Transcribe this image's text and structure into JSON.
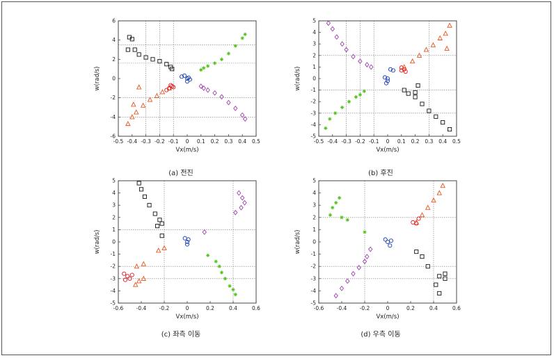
{
  "chart_data": [
    {
      "type": "scatter",
      "caption": "(a) 전진",
      "xlabel": "Vx(m/s)",
      "ylabel": "w(rad/s)",
      "xlim": [
        -0.5,
        0.5
      ],
      "ylim": [
        -6,
        6
      ],
      "xticks": [
        "-0.5",
        "-0.4",
        "-0.3",
        "-0.2",
        "-0.1",
        "0",
        "0.1",
        "0.2",
        "0.3",
        "0.4",
        "0.5"
      ],
      "yticks": [
        "-6",
        "-4",
        "-2",
        "0",
        "2",
        "4",
        "6"
      ],
      "guides_x": [
        -0.3,
        -0.2,
        -0.1
      ],
      "guides_y": [
        3.5,
        1.6,
        -2,
        -4
      ],
      "series": [
        {
          "color": "#111111",
          "marker": "square",
          "points": [
            [
              -0.43,
              3.0
            ],
            [
              -0.42,
              4.3
            ],
            [
              -0.4,
              4.1
            ],
            [
              -0.38,
              3.0
            ],
            [
              -0.35,
              2.5
            ],
            [
              -0.3,
              2.2
            ],
            [
              -0.25,
              2.0
            ],
            [
              -0.2,
              1.8
            ],
            [
              -0.15,
              1.5
            ],
            [
              -0.12,
              1.2
            ],
            [
              -0.11,
              1.0
            ]
          ]
        },
        {
          "color": "#e8531c",
          "marker": "triangle",
          "points": [
            [
              -0.43,
              -4.7
            ],
            [
              -0.4,
              -4.0
            ],
            [
              -0.37,
              -3.5
            ],
            [
              -0.32,
              -2.8
            ],
            [
              -0.27,
              -2.2
            ],
            [
              -0.22,
              -1.8
            ],
            [
              -0.18,
              -1.4
            ],
            [
              -0.35,
              -0.9
            ],
            [
              -0.39,
              -2.7
            ],
            [
              -0.13,
              -1.0
            ]
          ]
        },
        {
          "color": "#e0141c",
          "marker": "circle",
          "points": [
            [
              -0.15,
              -1.2
            ],
            [
              -0.13,
              -1.0
            ],
            [
              -0.11,
              -0.8
            ],
            [
              -0.1,
              -0.9
            ],
            [
              -0.12,
              -0.7
            ]
          ]
        },
        {
          "color": "#1a3fb0",
          "marker": "circle",
          "points": [
            [
              -0.04,
              0.2
            ],
            [
              -0.02,
              0.3
            ],
            [
              0.0,
              0.0
            ],
            [
              0.02,
              -0.1
            ],
            [
              0.0,
              -0.3
            ],
            [
              0.01,
              0.1
            ]
          ]
        },
        {
          "color": "#4cc214",
          "marker": "star",
          "points": [
            [
              0.1,
              0.9
            ],
            [
              0.12,
              1.1
            ],
            [
              0.15,
              1.3
            ],
            [
              0.2,
              1.6
            ],
            [
              0.25,
              2.0
            ],
            [
              0.3,
              2.6
            ],
            [
              0.35,
              3.4
            ],
            [
              0.4,
              4.2
            ],
            [
              0.42,
              4.6
            ]
          ]
        },
        {
          "color": "#a040b0",
          "marker": "diamond",
          "points": [
            [
              0.1,
              -0.8
            ],
            [
              0.12,
              -1.0
            ],
            [
              0.15,
              -1.2
            ],
            [
              0.2,
              -1.5
            ],
            [
              0.25,
              -1.9
            ],
            [
              0.3,
              -2.5
            ],
            [
              0.35,
              -3.1
            ],
            [
              0.4,
              -3.8
            ],
            [
              0.42,
              -4.2
            ]
          ]
        }
      ]
    },
    {
      "type": "scatter",
      "caption": "(b) 후진",
      "xlabel": "Vx(m/s)",
      "ylabel": "w(rad/s)",
      "xlim": [
        -0.5,
        0.5
      ],
      "ylim": [
        -5,
        5
      ],
      "xticks": [
        "-0.5",
        "-0.4",
        "-0.3",
        "-0.2",
        "-0.1",
        "0",
        "0.1",
        "0.2",
        "0.3",
        "0.4",
        "0.5"
      ],
      "yticks": [
        "-5",
        "-4",
        "-3",
        "-2",
        "-1",
        "0",
        "1",
        "2",
        "3",
        "4",
        "5"
      ],
      "guides_x": [
        -0.3,
        -0.2,
        -0.1,
        0.3
      ],
      "guides_y": [
        2,
        -1,
        -3
      ],
      "series": [
        {
          "color": "#a040b0",
          "marker": "diamond",
          "points": [
            [
              -0.43,
              4.8
            ],
            [
              -0.4,
              4.3
            ],
            [
              -0.37,
              3.6
            ],
            [
              -0.33,
              3.0
            ],
            [
              -0.3,
              2.5
            ],
            [
              -0.25,
              1.9
            ],
            [
              -0.2,
              1.5
            ],
            [
              -0.15,
              1.2
            ],
            [
              -0.12,
              1.0
            ]
          ]
        },
        {
          "color": "#4cc214",
          "marker": "star",
          "points": [
            [
              -0.45,
              -4.3
            ],
            [
              -0.42,
              -3.5
            ],
            [
              -0.38,
              -3.0
            ],
            [
              -0.33,
              -2.5
            ],
            [
              -0.28,
              -2.0
            ],
            [
              -0.23,
              -1.6
            ],
            [
              -0.2,
              -1.4
            ],
            [
              -0.17,
              -1.1
            ]
          ]
        },
        {
          "color": "#1a3fb0",
          "marker": "circle",
          "points": [
            [
              -0.02,
              0.1
            ],
            [
              0.0,
              0.0
            ],
            [
              0.0,
              -0.2
            ],
            [
              0.02,
              0.8
            ],
            [
              0.04,
              0.7
            ],
            [
              -0.01,
              -0.4
            ]
          ]
        },
        {
          "color": "#e0141c",
          "marker": "circle",
          "points": [
            [
              0.1,
              0.7
            ],
            [
              0.12,
              0.8
            ],
            [
              0.1,
              0.95
            ],
            [
              0.13,
              0.6
            ]
          ]
        },
        {
          "color": "#e8531c",
          "marker": "triangle",
          "points": [
            [
              0.12,
              1.0
            ],
            [
              0.18,
              1.5
            ],
            [
              0.23,
              2.0
            ],
            [
              0.28,
              2.5
            ],
            [
              0.33,
              2.9
            ],
            [
              0.38,
              3.5
            ],
            [
              0.42,
              3.9
            ],
            [
              0.45,
              4.6
            ],
            [
              0.43,
              2.6
            ]
          ]
        },
        {
          "color": "#111111",
          "marker": "square",
          "points": [
            [
              0.12,
              -1.0
            ],
            [
              0.15,
              -1.3
            ],
            [
              0.2,
              -1.6
            ],
            [
              0.25,
              -2.2
            ],
            [
              0.3,
              -2.8
            ],
            [
              0.35,
              -3.3
            ],
            [
              0.4,
              -3.8
            ],
            [
              0.45,
              -4.4
            ],
            [
              0.22,
              -0.6
            ],
            [
              0.2,
              -1.2
            ]
          ]
        }
      ]
    },
    {
      "type": "scatter",
      "caption": "(c) 좌측 이동",
      "xlabel": "Vx(m/s)",
      "ylabel": "w(rad/s)",
      "xlim": [
        -0.6,
        0.6
      ],
      "ylim": [
        -5,
        5
      ],
      "xticks": [
        "-0.6",
        "-0.4",
        "-0.2",
        "0",
        "0.2",
        "0.4",
        "0.6"
      ],
      "yticks": [
        "-5",
        "-4",
        "-3",
        "-2",
        "-1",
        "0",
        "1",
        "2",
        "3",
        "4",
        "5"
      ],
      "guides_x": [
        -0.2,
        0.4
      ],
      "guides_y": [
        1,
        -2,
        -3
      ],
      "series": [
        {
          "color": "#111111",
          "marker": "square",
          "points": [
            [
              -0.42,
              4.8
            ],
            [
              -0.4,
              4.3
            ],
            [
              -0.37,
              3.7
            ],
            [
              -0.33,
              3.0
            ],
            [
              -0.28,
              2.3
            ],
            [
              -0.24,
              1.8
            ],
            [
              -0.22,
              1.5
            ],
            [
              -0.26,
              1.3
            ],
            [
              -0.22,
              0.5
            ]
          ]
        },
        {
          "color": "#e8531c",
          "marker": "triangle",
          "points": [
            [
              -0.45,
              -3.5
            ],
            [
              -0.42,
              -3.2
            ],
            [
              -0.38,
              -3.0
            ],
            [
              -0.44,
              -2.0
            ],
            [
              -0.2,
              -0.5
            ],
            [
              -0.25,
              -0.7
            ],
            [
              -0.38,
              -1.8
            ]
          ]
        },
        {
          "color": "#e0141c",
          "marker": "circle",
          "points": [
            [
              -0.55,
              -2.6
            ],
            [
              -0.52,
              -2.8
            ],
            [
              -0.5,
              -3.0
            ],
            [
              -0.54,
              -3.1
            ],
            [
              -0.48,
              -2.7
            ]
          ]
        },
        {
          "color": "#1a3fb0",
          "marker": "circle",
          "points": [
            [
              -0.02,
              0.3
            ],
            [
              0.0,
              0.0
            ],
            [
              0.0,
              -0.2
            ],
            [
              0.01,
              0.2
            ]
          ]
        },
        {
          "color": "#4cc214",
          "marker": "star",
          "points": [
            [
              0.25,
              -1.6
            ],
            [
              0.28,
              -2.0
            ],
            [
              0.3,
              -2.5
            ],
            [
              0.33,
              -3.0
            ],
            [
              0.37,
              -3.6
            ],
            [
              0.4,
              -3.9
            ],
            [
              0.42,
              -4.3
            ],
            [
              0.18,
              -1.1
            ]
          ]
        },
        {
          "color": "#a040b0",
          "marker": "diamond",
          "points": [
            [
              0.47,
              2.8
            ],
            [
              0.5,
              3.2
            ],
            [
              0.48,
              3.6
            ],
            [
              0.45,
              4.0
            ],
            [
              0.42,
              2.4
            ],
            [
              0.15,
              0.8
            ]
          ]
        }
      ]
    },
    {
      "type": "scatter",
      "caption": "(d) 우측 이동",
      "xlabel": "Vx(m/s)",
      "ylabel": "w(rad/s)",
      "xlim": [
        -0.6,
        0.6
      ],
      "ylim": [
        -5,
        5
      ],
      "xticks": [
        "-0.6",
        "-0.4",
        "-0.2",
        "0",
        "0.2",
        "0.4",
        "0.6"
      ],
      "yticks": [
        "-5",
        "-4",
        "-3",
        "-2",
        "-1",
        "0",
        "1",
        "2",
        "3",
        "4",
        "5"
      ],
      "guides_x": [
        -0.2,
        0.4
      ],
      "guides_y": [
        2,
        -2,
        -3
      ],
      "series": [
        {
          "color": "#4cc214",
          "marker": "star",
          "points": [
            [
              -0.5,
              2.2
            ],
            [
              -0.48,
              2.8
            ],
            [
              -0.45,
              3.2
            ],
            [
              -0.42,
              3.6
            ],
            [
              -0.4,
              2.0
            ],
            [
              -0.35,
              1.8
            ],
            [
              -0.2,
              0.8
            ]
          ]
        },
        {
          "color": "#a040b0",
          "marker": "diamond",
          "points": [
            [
              -0.45,
              -4.4
            ],
            [
              -0.4,
              -3.8
            ],
            [
              -0.35,
              -3.2
            ],
            [
              -0.3,
              -2.6
            ],
            [
              -0.25,
              -2.1
            ],
            [
              -0.2,
              -1.6
            ],
            [
              -0.18,
              -1.2
            ],
            [
              -0.15,
              -0.6
            ]
          ]
        },
        {
          "color": "#1a3fb0",
          "marker": "circle",
          "points": [
            [
              -0.02,
              0.2
            ],
            [
              0.0,
              0.0
            ],
            [
              0.02,
              -0.3
            ],
            [
              0.03,
              0.1
            ]
          ]
        },
        {
          "color": "#e8531c",
          "marker": "triangle",
          "points": [
            [
              0.25,
              1.6
            ],
            [
              0.3,
              2.2
            ],
            [
              0.35,
              2.8
            ],
            [
              0.4,
              3.4
            ],
            [
              0.45,
              4.0
            ],
            [
              0.48,
              4.6
            ]
          ]
        },
        {
          "color": "#e0141c",
          "marker": "circle",
          "points": [
            [
              0.22,
              1.6
            ],
            [
              0.25,
              1.5
            ],
            [
              0.27,
              1.9
            ]
          ]
        },
        {
          "color": "#111111",
          "marker": "square",
          "points": [
            [
              0.25,
              -0.8
            ],
            [
              0.3,
              -1.2
            ],
            [
              0.35,
              -2.0
            ],
            [
              0.45,
              -2.8
            ],
            [
              0.5,
              -3.0
            ],
            [
              0.5,
              -2.6
            ],
            [
              0.42,
              -3.5
            ],
            [
              0.45,
              -4.2
            ]
          ]
        }
      ]
    }
  ]
}
